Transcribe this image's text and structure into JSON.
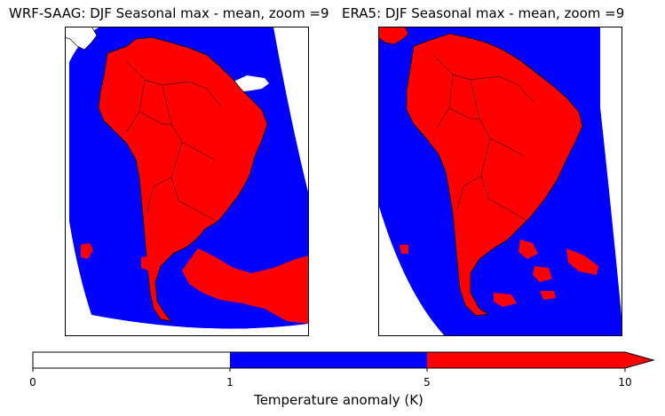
{
  "maps": [
    {
      "title": "WRF-SAAG: DJF Seasonal max - mean, zoom =9"
    },
    {
      "title": "ERA5: DJF Seasonal max - mean, zoom =9"
    }
  ],
  "colorbar": {
    "label": "Temperature anomaly (K)",
    "ticks": [
      "0",
      "1",
      "5",
      "10"
    ],
    "bins": [
      {
        "range": "0–1",
        "color": "#ffffff"
      },
      {
        "range": "1–5",
        "color": "#0000ff"
      },
      {
        "range": "5–10",
        "color": "#ff0000"
      }
    ],
    "extend": "max"
  },
  "colors": {
    "ocean": "#0000ff",
    "land": "#ff0000",
    "frame": "#000000"
  }
}
